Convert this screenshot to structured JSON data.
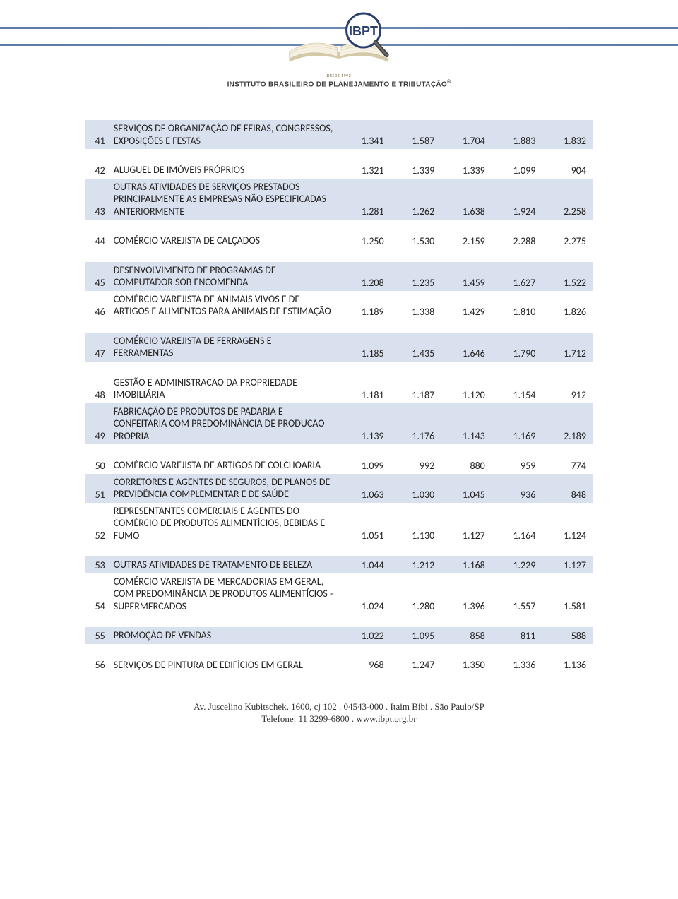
{
  "header": {
    "desde": "DESDE 1992",
    "org_name": "INSTITUTO BRASILEIRO DE PLANEJAMENTO E TRIBUTAÇÃO",
    "logo_text": "IBPT",
    "colors": {
      "band": "#5b7aa8",
      "book_page": "#f5f0e2",
      "book_shadow": "#d4c9a8",
      "badge_border": "#2a3f6b",
      "badge_fill": "#ffffff",
      "badge_text": "#2a3f6b",
      "glass_handle": "#3a3a3a"
    }
  },
  "table": {
    "colors": {
      "odd_row": "#d9e1ee",
      "even_row": "#ffffff",
      "text": "#222222"
    },
    "rows": [
      {
        "idx": "41",
        "desc": "SERVIÇOS DE ORGANIZAÇÃO DE FEIRAS, CONGRESSOS, EXPOSIÇÕES E FESTAS",
        "vals": [
          "1.341",
          "1.587",
          "1.704",
          "1.883",
          "1.832"
        ],
        "shade": "odd",
        "spacer_after": true
      },
      {
        "idx": "42",
        "desc": "ALUGUEL DE IMÓVEIS PRÓPRIOS",
        "vals": [
          "1.321",
          "1.339",
          "1.339",
          "1.099",
          "904"
        ],
        "shade": "even"
      },
      {
        "idx": "43",
        "desc": "OUTRAS ATIVIDADES DE SERVIÇOS PRESTADOS PRINCIPALMENTE AS EMPRESAS NÃO ESPECIFICADAS ANTERIORMENTE",
        "vals": [
          "1.281",
          "1.262",
          "1.638",
          "1.924",
          "2.258"
        ],
        "shade": "odd",
        "spacer_after": true
      },
      {
        "idx": "44",
        "desc": "COMÉRCIO VAREJISTA DE CALÇADOS",
        "vals": [
          "1.250",
          "1.530",
          "2.159",
          "2.288",
          "2.275"
        ],
        "shade": "even",
        "spacer_after": true
      },
      {
        "idx": "45",
        "desc": "DESENVOLVIMENTO DE PROGRAMAS DE COMPUTADOR SOB ENCOMENDA",
        "vals": [
          "1.208",
          "1.235",
          "1.459",
          "1.627",
          "1.522"
        ],
        "shade": "odd"
      },
      {
        "idx": "46",
        "desc": "COMÉRCIO VAREJISTA DE ANIMAIS VIVOS E DE ARTIGOS E ALIMENTOS PARA ANIMAIS DE ESTIMAÇÃO",
        "vals": [
          "1.189",
          "1.338",
          "1.429",
          "1.810",
          "1.826"
        ],
        "shade": "even",
        "spacer_after": true
      },
      {
        "idx": "47",
        "desc": "COMÉRCIO VAREJISTA DE FERRAGENS E FERRAMENTAS",
        "vals": [
          "1.185",
          "1.435",
          "1.646",
          "1.790",
          "1.712"
        ],
        "shade": "odd",
        "spacer_after": true
      },
      {
        "idx": "48",
        "desc": "GESTÃO E ADMINISTRACAO DA PROPRIEDADE IMOBILIÁRIA",
        "vals": [
          "1.181",
          "1.187",
          "1.120",
          "1.154",
          "912"
        ],
        "shade": "even"
      },
      {
        "idx": "49",
        "desc": "FABRICAÇÃO DE PRODUTOS DE PADARIA E CONFEITARIA COM PREDOMINÂNCIA DE PRODUCAO PROPRIA",
        "vals": [
          "1.139",
          "1.176",
          "1.143",
          "1.169",
          "2.189"
        ],
        "shade": "odd",
        "spacer_after": true
      },
      {
        "idx": "50",
        "desc": "COMÉRCIO VAREJISTA DE ARTIGOS DE COLCHOARIA",
        "vals": [
          "1.099",
          "992",
          "880",
          "959",
          "774"
        ],
        "shade": "even"
      },
      {
        "idx": "51",
        "desc": "CORRETORES E AGENTES DE SEGUROS, DE PLANOS DE PREVIDÊNCIA COMPLEMENTAR E DE SAÚDE",
        "vals": [
          "1.063",
          "1.030",
          "1.045",
          "936",
          "848"
        ],
        "shade": "odd"
      },
      {
        "idx": "52",
        "desc": "REPRESENTANTES COMERCIAIS E AGENTES DO COMÉRCIO DE PRODUTOS ALIMENTÍCIOS, BEBIDAS E FUMO",
        "vals": [
          "1.051",
          "1.130",
          "1.127",
          "1.164",
          "1.124"
        ],
        "shade": "even",
        "spacer_after": true
      },
      {
        "idx": "53",
        "desc": "OUTRAS ATIVIDADES DE TRATAMENTO DE BELEZA",
        "vals": [
          "1.044",
          "1.212",
          "1.168",
          "1.229",
          "1.127"
        ],
        "shade": "odd"
      },
      {
        "idx": "54",
        "desc": "COMÉRCIO VAREJISTA DE MERCADORIAS EM GERAL, COM PREDOMINÂNCIA DE PRODUTOS ALIMENTÍCIOS - SUPERMERCADOS",
        "vals": [
          "1.024",
          "1.280",
          "1.396",
          "1.557",
          "1.581"
        ],
        "shade": "even",
        "spacer_after": true
      },
      {
        "idx": "55",
        "desc": "PROMOÇÃO DE VENDAS",
        "vals": [
          "1.022",
          "1.095",
          "858",
          "811",
          "588"
        ],
        "shade": "odd",
        "spacer_after": true
      },
      {
        "idx": "56",
        "desc": "SERVIÇOS DE PINTURA DE EDIFÍCIOS EM GERAL",
        "vals": [
          "968",
          "1.247",
          "1.350",
          "1.336",
          "1.136"
        ],
        "shade": "even"
      }
    ]
  },
  "footer": {
    "line1": "Av. Juscelino Kubitschek, 1600, cj 102 . 04543-000 . Itaim Bibi . São Paulo/SP",
    "line2": "Telefone: 11 3299-6800 . www.ibpt.org.br"
  }
}
